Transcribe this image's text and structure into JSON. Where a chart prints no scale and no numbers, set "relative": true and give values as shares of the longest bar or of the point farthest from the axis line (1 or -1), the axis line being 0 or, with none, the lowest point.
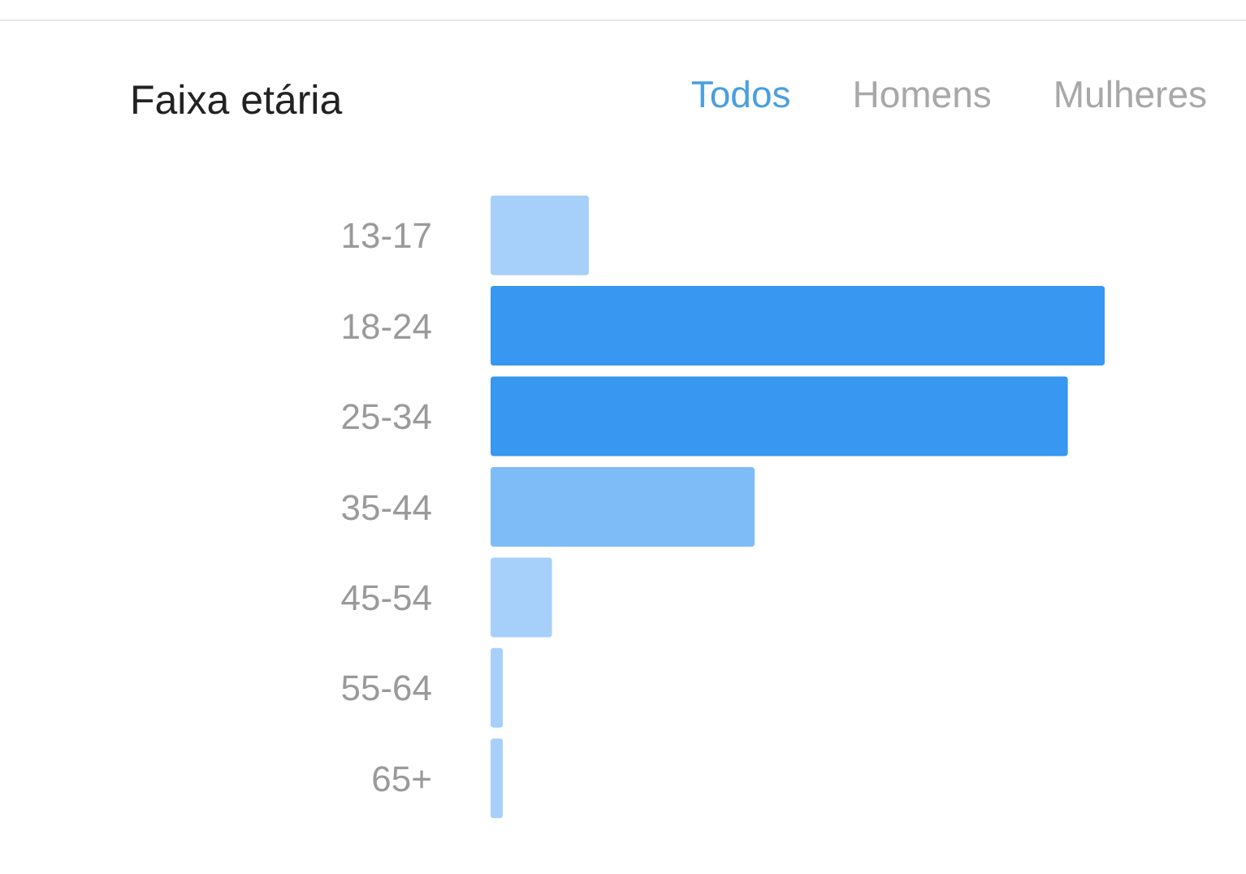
{
  "chart_data": {
    "type": "bar",
    "orientation": "horizontal",
    "relative": true,
    "title": "Faixa etária",
    "annotations": [
      "Todos",
      "Homens",
      "Mulheres"
    ],
    "categories": [
      "13-17",
      "18-24",
      "25-34",
      "35-44",
      "45-54",
      "55-64",
      "65+"
    ],
    "values": [
      0.16,
      1,
      0.94,
      0.43,
      0.1,
      0.02,
      0.02
    ],
    "colors": [
      "#a6d0fa",
      "#3897f0",
      "#3897f0",
      "#7dbcf6",
      "#a6d0fa",
      "#a6d0fa",
      "#a6d0fa"
    ]
  }
}
